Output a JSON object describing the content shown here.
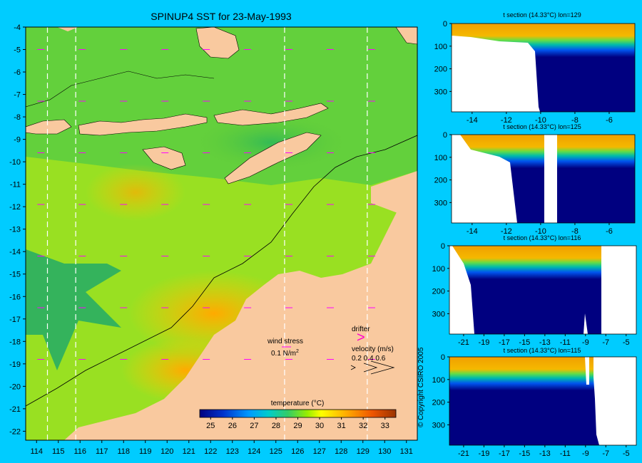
{
  "chart_data": [
    {
      "type": "heatmap",
      "title": "SPINUP4 SST for 23-May-1993",
      "x_ticks": [
        114,
        115,
        116,
        117,
        118,
        119,
        120,
        121,
        122,
        123,
        124,
        125,
        126,
        127,
        128,
        129,
        130,
        131
      ],
      "y_ticks": [
        -4,
        -5,
        -6,
        -7,
        -8,
        -9,
        -10,
        -11,
        -12,
        -13,
        -14,
        -15,
        -16,
        -17,
        -18,
        -19,
        -20,
        -21,
        -22
      ],
      "xlim": [
        113.5,
        131.5
      ],
      "ylim": [
        -22.4,
        -4
      ],
      "section_lines_lon": [
        114.5,
        115.8,
        125.4,
        129.2
      ],
      "colorbar": {
        "label": "temperature (°C)",
        "ticks": [
          25,
          26,
          27,
          28,
          29,
          30,
          31,
          32,
          33
        ],
        "range": [
          24.5,
          33.5
        ]
      },
      "annotations": {
        "wind_stress_label": "wind stress",
        "wind_stress_value": "0.1 N/m",
        "wind_stress_exp": "2",
        "drifter_label": "drifter",
        "velocity_label": "velocity (m/s)",
        "velocity_values": "0.2 0.4 0.6"
      }
    },
    {
      "type": "heatmap",
      "title": "t section (14.33°C) lon=129",
      "x_ticks": [
        -14,
        -12,
        -10,
        -8,
        -6
      ],
      "y_ticks": [
        0,
        100,
        200,
        300
      ],
      "xlim": [
        -15.2,
        -4.5
      ],
      "ylim": [
        390,
        0
      ]
    },
    {
      "type": "heatmap",
      "title": "t section (14.33°C) lon=125",
      "x_ticks": [
        -14,
        -12,
        -10,
        -8,
        -6
      ],
      "y_ticks": [
        0,
        100,
        200,
        300
      ],
      "xlim": [
        -15.2,
        -4.5
      ],
      "ylim": [
        390,
        0
      ]
    },
    {
      "type": "heatmap",
      "title": "t section (14.33°C) lon=116",
      "x_ticks": [
        -21,
        -19,
        -17,
        -15,
        -13,
        -11,
        -9,
        -7,
        -5
      ],
      "y_ticks": [
        0,
        100,
        200,
        300
      ],
      "xlim": [
        -22.4,
        -4
      ],
      "ylim": [
        390,
        0
      ]
    },
    {
      "type": "heatmap",
      "title": "t section (14.33°C) lon=115",
      "x_ticks": [
        -21,
        -19,
        -17,
        -15,
        -13,
        -11,
        -9,
        -7,
        -5
      ],
      "y_ticks": [
        0,
        100,
        200,
        300
      ],
      "xlim": [
        -22.4,
        -4
      ],
      "ylim": [
        390,
        0
      ]
    }
  ],
  "copyright": "© Copyright CSIRO 2005"
}
